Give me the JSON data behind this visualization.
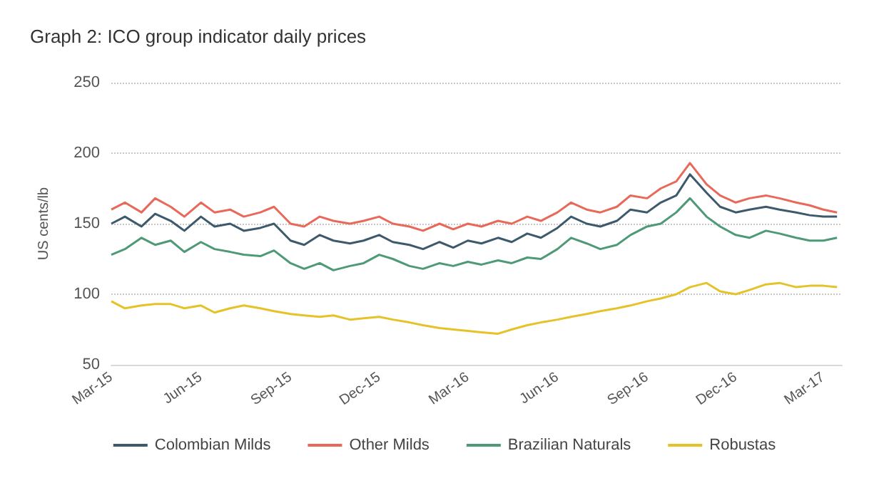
{
  "chart_data": {
    "type": "line",
    "title": "Graph 2: ICO group indicator daily prices",
    "ylabel": "US cents/lb",
    "x": [
      "2015-03-01",
      "2015-03-15",
      "2015-04-01",
      "2015-04-15",
      "2015-05-01",
      "2015-05-15",
      "2015-06-01",
      "2015-06-15",
      "2015-07-01",
      "2015-07-15",
      "2015-08-01",
      "2015-08-15",
      "2015-09-01",
      "2015-09-15",
      "2015-10-01",
      "2015-10-15",
      "2015-11-01",
      "2015-11-15",
      "2015-12-01",
      "2015-12-15",
      "2016-01-01",
      "2016-01-15",
      "2016-02-01",
      "2016-02-15",
      "2016-03-01",
      "2016-03-15",
      "2016-04-01",
      "2016-04-15",
      "2016-05-01",
      "2016-05-15",
      "2016-06-01",
      "2016-06-15",
      "2016-07-01",
      "2016-07-15",
      "2016-08-01",
      "2016-08-15",
      "2016-09-01",
      "2016-09-15",
      "2016-10-01",
      "2016-10-15",
      "2016-11-01",
      "2016-11-15",
      "2016-12-01",
      "2016-12-15",
      "2017-01-01",
      "2017-01-15",
      "2017-02-01",
      "2017-02-15",
      "2017-03-01",
      "2017-03-15"
    ],
    "series": [
      {
        "name": "Colombian Milds",
        "color": "#3d5a6c",
        "values": [
          150,
          155,
          148,
          157,
          152,
          145,
          155,
          148,
          150,
          145,
          147,
          150,
          138,
          135,
          142,
          138,
          136,
          138,
          142,
          137,
          135,
          132,
          137,
          133,
          138,
          136,
          140,
          137,
          143,
          140,
          147,
          155,
          150,
          148,
          152,
          160,
          158,
          165,
          170,
          185,
          172,
          162,
          158,
          160,
          162,
          160,
          158,
          156,
          155,
          155
        ]
      },
      {
        "name": "Other Milds",
        "color": "#e8695a",
        "values": [
          160,
          165,
          158,
          168,
          162,
          155,
          165,
          158,
          160,
          155,
          158,
          162,
          150,
          148,
          155,
          152,
          150,
          152,
          155,
          150,
          148,
          145,
          150,
          146,
          150,
          148,
          152,
          150,
          155,
          152,
          158,
          165,
          160,
          158,
          162,
          170,
          168,
          175,
          180,
          193,
          178,
          170,
          165,
          168,
          170,
          168,
          165,
          163,
          160,
          158
        ]
      },
      {
        "name": "Brazilian Naturals",
        "color": "#4f9a76",
        "values": [
          128,
          132,
          140,
          135,
          138,
          130,
          137,
          132,
          130,
          128,
          127,
          131,
          122,
          118,
          122,
          117,
          120,
          122,
          128,
          125,
          120,
          118,
          122,
          120,
          123,
          121,
          124,
          122,
          126,
          125,
          132,
          140,
          136,
          132,
          135,
          142,
          148,
          150,
          158,
          168,
          155,
          148,
          142,
          140,
          145,
          143,
          140,
          138,
          138,
          140
        ]
      },
      {
        "name": "Robustas",
        "color": "#e6c229",
        "values": [
          95,
          90,
          92,
          93,
          93,
          90,
          92,
          87,
          90,
          92,
          90,
          88,
          86,
          85,
          84,
          85,
          82,
          83,
          84,
          82,
          80,
          78,
          76,
          75,
          74,
          73,
          72,
          75,
          78,
          80,
          82,
          84,
          86,
          88,
          90,
          92,
          95,
          97,
          100,
          105,
          108,
          102,
          100,
          103,
          107,
          108,
          105,
          106,
          106,
          105
        ]
      }
    ],
    "xlim": [
      "2015-03-01",
      "2017-03-20"
    ],
    "xticks": [
      {
        "value": "2015-03-01",
        "label": "Mar-15"
      },
      {
        "value": "2015-06-01",
        "label": "Jun-15"
      },
      {
        "value": "2015-09-01",
        "label": "Sep-15"
      },
      {
        "value": "2015-12-01",
        "label": "Dec-15"
      },
      {
        "value": "2016-03-01",
        "label": "Mar-16"
      },
      {
        "value": "2016-06-01",
        "label": "Jun-16"
      },
      {
        "value": "2016-09-01",
        "label": "Sep-16"
      },
      {
        "value": "2016-12-01",
        "label": "Dec-16"
      },
      {
        "value": "2017-03-01",
        "label": "Mar-17"
      }
    ],
    "ylim": [
      50,
      250
    ],
    "yticks": [
      50,
      100,
      150,
      200,
      250
    ],
    "grid": "y",
    "legend": "bottom",
    "marker": "none",
    "line_style": "solid"
  }
}
